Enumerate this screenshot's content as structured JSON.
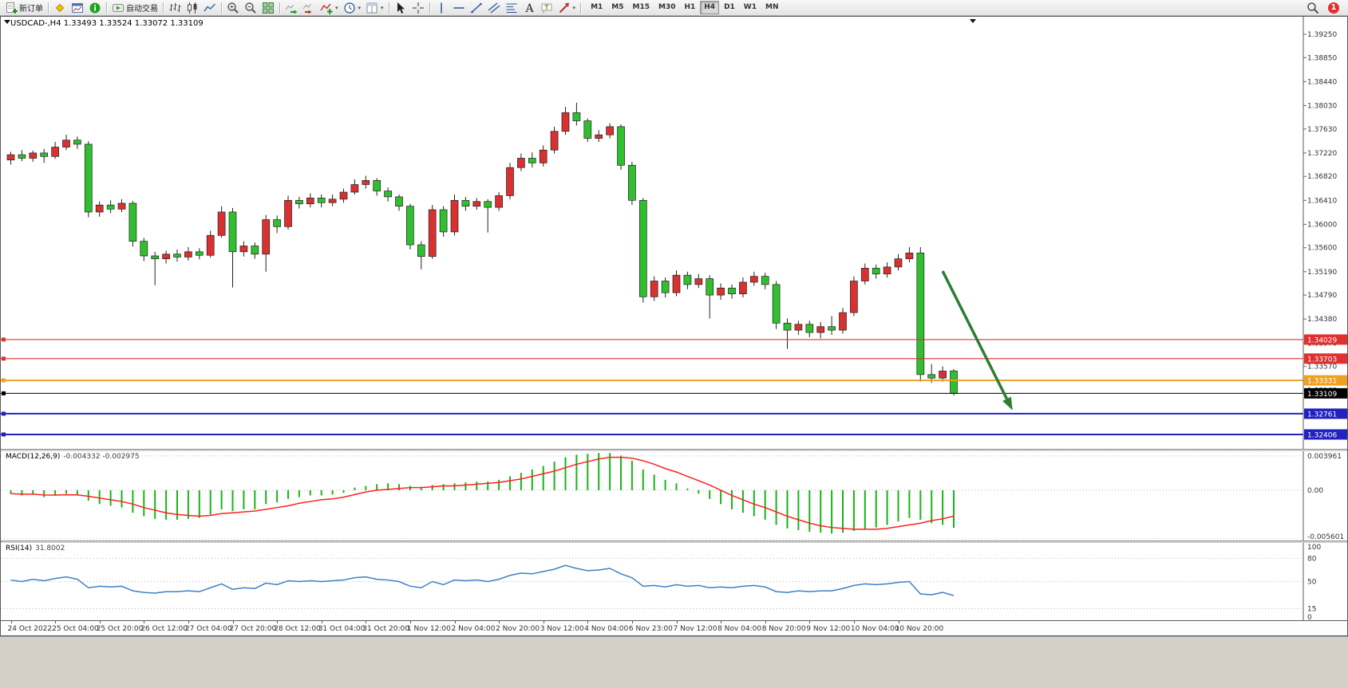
{
  "chart": {
    "title": "USDCAD-,H4  1.33493 1.33524 1.33072 1.33109"
  },
  "toolbar": {
    "groups": [
      {
        "items": [
          {
            "icon": "new-order-icon",
            "name": "new-order-button",
            "label": "新订单"
          }
        ]
      },
      {
        "items": [
          {
            "icon": "metaeditor-icon",
            "name": "metaeditor-button"
          },
          {
            "icon": "charts-window-icon",
            "name": "charts-button"
          },
          {
            "icon": "info-icon",
            "name": "market-info-button"
          }
        ]
      },
      {
        "items": [
          {
            "icon": "autotrade-icon",
            "name": "autotrading-button",
            "label": "自动交易"
          }
        ]
      },
      {
        "items": [
          {
            "icon": "bars-icon",
            "name": "bar-chart-button"
          },
          {
            "icon": "candles-icon",
            "name": "candlestick-chart-button"
          },
          {
            "icon": "line-chart-icon",
            "name": "line-chart-button"
          }
        ]
      },
      {
        "items": [
          {
            "icon": "zoom-in-icon",
            "name": "zoom-in-button"
          },
          {
            "icon": "zoom-out-icon",
            "name": "zoom-out-button"
          },
          {
            "icon": "tile-windows-icon",
            "name": "tile-windows-button"
          }
        ]
      },
      {
        "items": [
          {
            "icon": "autoscroll-icon",
            "name": "autoscroll-button"
          },
          {
            "icon": "chart-shift-icon",
            "name": "chart-shift-button"
          },
          {
            "icon": "indicators-icon",
            "name": "indicators-button",
            "dropdown": true
          },
          {
            "icon": "periods-icon",
            "name": "periods-button",
            "dropdown": true
          },
          {
            "icon": "templates-icon",
            "name": "templates-button",
            "dropdown": true
          }
        ]
      },
      {
        "items": [
          {
            "icon": "cursor-icon",
            "name": "cursor-button"
          },
          {
            "icon": "crosshair-icon",
            "name": "crosshair-button"
          }
        ]
      },
      {
        "items": [
          {
            "icon": "vline-icon",
            "name": "vertical-line-button"
          },
          {
            "icon": "hline-icon",
            "name": "horizontal-line-button"
          },
          {
            "icon": "trendline-icon",
            "name": "trendline-button"
          },
          {
            "icon": "channel-icon",
            "name": "channel-button"
          },
          {
            "icon": "fibonacci-icon",
            "name": "fibonacci-button"
          },
          {
            "icon": "text-icon",
            "name": "text-button"
          },
          {
            "icon": "label-icon",
            "name": "text-label-button"
          },
          {
            "icon": "shapes-icon",
            "name": "shapes-button",
            "dropdown": true
          }
        ]
      }
    ],
    "timeframes": [
      "M1",
      "M5",
      "M15",
      "M30",
      "H1",
      "H4",
      "D1",
      "W1",
      "MN"
    ],
    "active_timeframe": "H4",
    "right": {
      "badge": "1"
    }
  },
  "chart_data": {
    "type": "candlestick",
    "symbol": "USDCAD-",
    "period": "H4",
    "ohlc_display": {
      "open": "1.33493",
      "high": "1.33524",
      "low": "1.33072",
      "close": "1.33109"
    },
    "price_axis": {
      "labels": [
        "1.39250",
        "1.38850",
        "1.38440",
        "1.38030",
        "1.37630",
        "1.37220",
        "1.36820",
        "1.36410",
        "1.36000",
        "1.35600",
        "1.35190",
        "1.34790",
        "1.34380",
        "1.33970",
        "1.33570",
        "1.33160"
      ],
      "min": 1.3216,
      "max": 1.3955
    },
    "candles": [
      [
        1.371,
        1.3724,
        1.3702,
        1.3719
      ],
      [
        1.3719,
        1.3727,
        1.3708,
        1.3713
      ],
      [
        1.3713,
        1.3726,
        1.3707,
        1.3722
      ],
      [
        1.3722,
        1.3729,
        1.3705,
        1.3716
      ],
      [
        1.3716,
        1.3741,
        1.3712,
        1.3732
      ],
      [
        1.3732,
        1.3753,
        1.3727,
        1.3744
      ],
      [
        1.3744,
        1.375,
        1.3729,
        1.3737
      ],
      [
        1.3737,
        1.3742,
        1.3612,
        1.3621
      ],
      [
        1.3621,
        1.3639,
        1.3613,
        1.3633
      ],
      [
        1.3633,
        1.3641,
        1.3619,
        1.3626
      ],
      [
        1.3626,
        1.3643,
        1.3621,
        1.3636
      ],
      [
        1.3636,
        1.364,
        1.3562,
        1.3571
      ],
      [
        1.3571,
        1.3577,
        1.3537,
        1.3546
      ],
      [
        1.3546,
        1.3553,
        1.3496,
        1.3541
      ],
      [
        1.3541,
        1.3555,
        1.3533,
        1.3549
      ],
      [
        1.3549,
        1.3557,
        1.3536,
        1.3544
      ],
      [
        1.3544,
        1.3561,
        1.3538,
        1.3553
      ],
      [
        1.3553,
        1.3559,
        1.354,
        1.3547
      ],
      [
        1.3547,
        1.3589,
        1.3543,
        1.3581
      ],
      [
        1.3581,
        1.3631,
        1.3577,
        1.3621
      ],
      [
        1.3621,
        1.3628,
        1.3492,
        1.3553
      ],
      [
        1.3553,
        1.3571,
        1.3545,
        1.3563
      ],
      [
        1.3563,
        1.3569,
        1.3541,
        1.3549
      ],
      [
        1.3549,
        1.3616,
        1.3519,
        1.3608
      ],
      [
        1.3608,
        1.3615,
        1.3585,
        1.3596
      ],
      [
        1.3596,
        1.3649,
        1.3591,
        1.3641
      ],
      [
        1.3641,
        1.3647,
        1.3627,
        1.3635
      ],
      [
        1.3635,
        1.3653,
        1.3629,
        1.3645
      ],
      [
        1.3645,
        1.3651,
        1.3629,
        1.3637
      ],
      [
        1.3637,
        1.3651,
        1.3631,
        1.3643
      ],
      [
        1.3643,
        1.3661,
        1.3637,
        1.3655
      ],
      [
        1.3655,
        1.3677,
        1.3651,
        1.3668
      ],
      [
        1.3668,
        1.3683,
        1.3661,
        1.3675
      ],
      [
        1.3675,
        1.3679,
        1.3649,
        1.3657
      ],
      [
        1.3657,
        1.3663,
        1.3639,
        1.3647
      ],
      [
        1.3647,
        1.3651,
        1.3623,
        1.3631
      ],
      [
        1.3631,
        1.3635,
        1.3557,
        1.3565
      ],
      [
        1.3565,
        1.3571,
        1.3523,
        1.3545
      ],
      [
        1.3545,
        1.3633,
        1.3541,
        1.3625
      ],
      [
        1.3625,
        1.3631,
        1.3579,
        1.3587
      ],
      [
        1.3587,
        1.3651,
        1.3581,
        1.3641
      ],
      [
        1.3641,
        1.3647,
        1.3623,
        1.3631
      ],
      [
        1.3631,
        1.3645,
        1.3625,
        1.3639
      ],
      [
        1.3639,
        1.3643,
        1.3586,
        1.3629
      ],
      [
        1.3629,
        1.3655,
        1.3623,
        1.3649
      ],
      [
        1.3649,
        1.3705,
        1.3643,
        1.3697
      ],
      [
        1.3697,
        1.3721,
        1.3691,
        1.3713
      ],
      [
        1.3713,
        1.3723,
        1.3697,
        1.3705
      ],
      [
        1.3705,
        1.3735,
        1.3699,
        1.3727
      ],
      [
        1.3727,
        1.3767,
        1.3721,
        1.3759
      ],
      [
        1.3759,
        1.3801,
        1.3753,
        1.3791
      ],
      [
        1.3791,
        1.3808,
        1.3769,
        1.3777
      ],
      [
        1.3777,
        1.3781,
        1.3741,
        1.3747
      ],
      [
        1.3747,
        1.3761,
        1.3741,
        1.3753
      ],
      [
        1.3753,
        1.3773,
        1.3747,
        1.3767
      ],
      [
        1.3767,
        1.3771,
        1.3693,
        1.3701
      ],
      [
        1.3701,
        1.3707,
        1.3633,
        1.3641
      ],
      [
        1.3641,
        1.3645,
        1.3466,
        1.3476
      ],
      [
        1.3476,
        1.3511,
        1.3469,
        1.3503
      ],
      [
        1.3503,
        1.3509,
        1.3475,
        1.3483
      ],
      [
        1.3483,
        1.3521,
        1.3477,
        1.3513
      ],
      [
        1.3513,
        1.3519,
        1.3489,
        1.3497
      ],
      [
        1.3497,
        1.3515,
        1.3491,
        1.3507
      ],
      [
        1.3507,
        1.3513,
        1.3439,
        1.3479
      ],
      [
        1.3479,
        1.3499,
        1.3471,
        1.3491
      ],
      [
        1.3491,
        1.3497,
        1.3473,
        1.3481
      ],
      [
        1.3481,
        1.3509,
        1.3475,
        1.3501
      ],
      [
        1.3501,
        1.3519,
        1.3495,
        1.3511
      ],
      [
        1.3511,
        1.3517,
        1.3489,
        1.3497
      ],
      [
        1.3497,
        1.3503,
        1.3421,
        1.3431
      ],
      [
        1.3431,
        1.3439,
        1.3387,
        1.3419
      ],
      [
        1.3419,
        1.3435,
        1.3411,
        1.3429
      ],
      [
        1.3429,
        1.3435,
        1.3407,
        1.3415
      ],
      [
        1.3415,
        1.3433,
        1.3405,
        1.3425
      ],
      [
        1.3425,
        1.3443,
        1.3411,
        1.3419
      ],
      [
        1.3419,
        1.3457,
        1.3413,
        1.3449
      ],
      [
        1.3449,
        1.3511,
        1.3443,
        1.3503
      ],
      [
        1.3503,
        1.3533,
        1.3497,
        1.3525
      ],
      [
        1.3525,
        1.3531,
        1.3507,
        1.3515
      ],
      [
        1.3515,
        1.3535,
        1.3509,
        1.3527
      ],
      [
        1.3527,
        1.3549,
        1.3521,
        1.3541
      ],
      [
        1.3541,
        1.3561,
        1.3535,
        1.3551
      ],
      [
        1.3551,
        1.3561,
        1.3331,
        1.3343
      ],
      [
        1.3343,
        1.3361,
        1.3329,
        1.3337
      ],
      [
        1.3337,
        1.3357,
        1.3331,
        1.3349
      ],
      [
        1.33493,
        1.33524,
        1.33072,
        1.33109
      ]
    ],
    "hlines": [
      {
        "price": 1.34029,
        "label": "1.34029",
        "color": "#e03030",
        "width": 1.2
      },
      {
        "price": 1.33703,
        "label": "1.33703",
        "color": "#e03030",
        "width": 1.2
      },
      {
        "price": 1.33331,
        "label": "1.33331",
        "color": "#f0a020",
        "width": 2
      },
      {
        "price": 1.32761,
        "label": "1.32761",
        "color": "#2222c0",
        "width": 2
      },
      {
        "price": 1.32406,
        "label": "1.32406",
        "color": "#2222c0",
        "width": 2
      }
    ],
    "bid_line": {
      "price": 1.33109,
      "label": "1.33109",
      "color": "#000000",
      "width": 1
    },
    "arrow": {
      "from": {
        "bar": 84,
        "price": 1.352
      },
      "to": {
        "bar": 90.3,
        "price": 1.3282
      },
      "color": "#2e7d32"
    }
  },
  "macd": {
    "label": "MACD(12,26,9)",
    "values": "-0.004332 -0.002975",
    "axis": [
      {
        "text": "0.003961",
        "value": 0.003961
      },
      {
        "text": "0.00",
        "value": 0
      },
      {
        "text": "-0.005601",
        "value": -0.005601
      }
    ],
    "histogram": [
      -0.0004,
      -0.0006,
      -0.0005,
      -0.0008,
      -0.0006,
      -0.0004,
      -0.0006,
      -0.0012,
      -0.0016,
      -0.0018,
      -0.002,
      -0.0026,
      -0.003,
      -0.0033,
      -0.0034,
      -0.0034,
      -0.0033,
      -0.0032,
      -0.0028,
      -0.0022,
      -0.0024,
      -0.0022,
      -0.0022,
      -0.0016,
      -0.0014,
      -0.001,
      -0.0008,
      -0.0006,
      -0.0006,
      -0.0005,
      -0.0003,
      0.0003,
      0.0005,
      0.0007,
      0.0008,
      0.0007,
      0.0005,
      0.0004,
      0.0006,
      0.0007,
      0.0008,
      0.0009,
      0.001,
      0.001,
      0.0012,
      0.0016,
      0.002,
      0.0024,
      0.0028,
      0.0033,
      0.0038,
      0.0041,
      0.0042,
      0.0043,
      0.0043,
      0.004,
      0.0034,
      0.0024,
      0.0018,
      0.0012,
      0.0008,
      0.0002,
      -0.0004,
      -0.001,
      -0.0016,
      -0.0022,
      -0.0026,
      -0.003,
      -0.0034,
      -0.004,
      -0.0044,
      -0.0046,
      -0.0048,
      -0.0049,
      -0.005,
      -0.0049,
      -0.0047,
      -0.0045,
      -0.0043,
      -0.004,
      -0.0036,
      -0.0032,
      -0.0034,
      -0.0038,
      -0.004,
      -0.00433
    ],
    "signal": [
      -0.0004,
      -0.00045,
      -0.00046,
      -0.00055,
      -0.00056,
      -0.00052,
      -0.00054,
      -0.0007,
      -0.0009,
      -0.0011,
      -0.0013,
      -0.0016,
      -0.002,
      -0.0023,
      -0.0026,
      -0.0028,
      -0.0029,
      -0.003,
      -0.0029,
      -0.0027,
      -0.0026,
      -0.0025,
      -0.0024,
      -0.0022,
      -0.002,
      -0.0018,
      -0.0015,
      -0.0013,
      -0.0011,
      -0.001,
      -0.0008,
      -0.0005,
      -0.0002,
      0.0,
      0.0001,
      0.0002,
      0.0003,
      0.0003,
      0.0004,
      0.0005,
      0.0005,
      0.0006,
      0.0007,
      0.0008,
      0.0009,
      0.0011,
      0.0013,
      0.0016,
      0.0019,
      0.0022,
      0.0026,
      0.003,
      0.0033,
      0.0036,
      0.0038,
      0.0038,
      0.0037,
      0.0034,
      0.003,
      0.0025,
      0.0021,
      0.0016,
      0.0011,
      0.0006,
      0.0,
      -0.0006,
      -0.0011,
      -0.0016,
      -0.002,
      -0.0025,
      -0.003,
      -0.0034,
      -0.0038,
      -0.0041,
      -0.0043,
      -0.0044,
      -0.0045,
      -0.0045,
      -0.0045,
      -0.0044,
      -0.0042,
      -0.004,
      -0.0038,
      -0.0035,
      -0.0033,
      -0.00298
    ]
  },
  "rsi": {
    "label": "RSI(14)",
    "value": "31.8002",
    "axis": [
      {
        "text": "100",
        "value": 100
      },
      {
        "text": "80",
        "value": 80
      },
      {
        "text": "50",
        "value": 50
      },
      {
        "text": "15",
        "value": 15
      },
      {
        "text": "0",
        "value": 0
      }
    ],
    "levels": [
      80,
      50,
      15
    ],
    "values": [
      52,
      50,
      53,
      51,
      54,
      56,
      53,
      42,
      44,
      43,
      44,
      38,
      36,
      35,
      37,
      37,
      38,
      37,
      42,
      47,
      40,
      42,
      41,
      48,
      46,
      51,
      50,
      51,
      50,
      51,
      52,
      55,
      56,
      53,
      52,
      50,
      44,
      42,
      50,
      46,
      52,
      51,
      52,
      50,
      53,
      58,
      61,
      60,
      63,
      66,
      71,
      67,
      64,
      65,
      67,
      60,
      55,
      44,
      45,
      43,
      46,
      44,
      45,
      42,
      43,
      42,
      44,
      45,
      43,
      37,
      36,
      38,
      37,
      38,
      38,
      41,
      45,
      47,
      46,
      47,
      49,
      50,
      34,
      33,
      36,
      31.8
    ]
  },
  "time_axis": {
    "labels": [
      "24 Oct 2022",
      "25 Oct 04:00",
      "25 Oct 20:00",
      "26 Oct 12:00",
      "27 Oct 04:00",
      "27 Oct 20:00",
      "28 Oct 12:00",
      "31 Oct 04:00",
      "31 Oct 20:00",
      "1 Nov 12:00",
      "2 Nov 04:00",
      "2 Nov 20:00",
      "3 Nov 12:00",
      "4 Nov 04:00",
      "6 Nov 23:00",
      "7 Nov 12:00",
      "8 Nov 04:00",
      "8 Nov 20:00",
      "9 Nov 12:00",
      "10 Nov 04:00",
      "10 Nov 20:00"
    ]
  },
  "colors": {
    "up": "#d93030",
    "down": "#2fbf2f",
    "wick": "#222222",
    "macd_hist": "#18b418",
    "macd_signal": "#ff2020",
    "rsi": "#3e80c8",
    "arrow": "#2e7d32"
  }
}
